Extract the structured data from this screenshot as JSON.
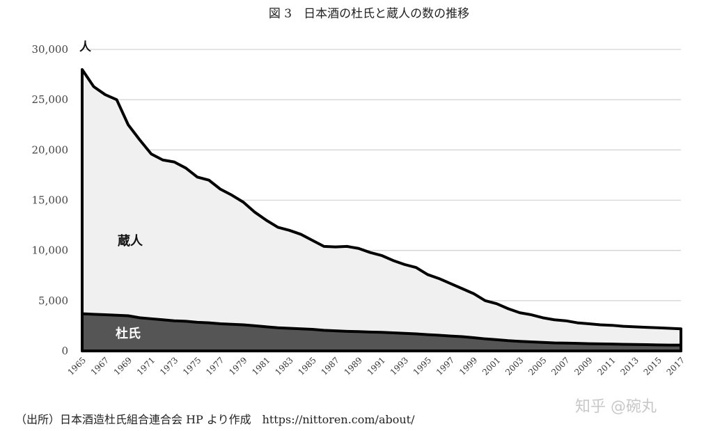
{
  "chart_data": {
    "type": "area",
    "title": "図 3　日本酒の杜氏と蔵人の数の推移",
    "y_unit": "人",
    "ylim": [
      0,
      30000
    ],
    "y_ticks": [
      0,
      5000,
      10000,
      15000,
      20000,
      25000,
      30000
    ],
    "y_tick_labels": [
      "0",
      "5,000",
      "10,000",
      "15,000",
      "20,000",
      "25,000",
      "30,000"
    ],
    "grid": true,
    "stacked": false,
    "x": [
      1965,
      1966,
      1967,
      1968,
      1969,
      1970,
      1971,
      1972,
      1973,
      1974,
      1975,
      1976,
      1977,
      1978,
      1979,
      1980,
      1981,
      1982,
      1983,
      1984,
      1985,
      1986,
      1987,
      1988,
      1989,
      1990,
      1991,
      1992,
      1993,
      1994,
      1995,
      1996,
      1997,
      1998,
      1999,
      2000,
      2001,
      2002,
      2003,
      2004,
      2005,
      2006,
      2007,
      2008,
      2009,
      2010,
      2011,
      2012,
      2013,
      2014,
      2015,
      2016,
      2017
    ],
    "x_tick_labels": [
      "1965",
      "1967",
      "1969",
      "1971",
      "1973",
      "1975",
      "1977",
      "1979",
      "1981",
      "1983",
      "1985",
      "1987",
      "1989",
      "1991",
      "1993",
      "1995",
      "1997",
      "1999",
      "2001",
      "2003",
      "2005",
      "2007",
      "2009",
      "2011",
      "2013",
      "2015",
      "2017"
    ],
    "series": [
      {
        "name": "蔵人",
        "color": "#f0f0f0",
        "stroke": "#000000",
        "values": [
          28000,
          26300,
          25500,
          25000,
          22500,
          21000,
          19600,
          19000,
          18800,
          18200,
          17300,
          17000,
          16100,
          15500,
          14800,
          13800,
          13000,
          12300,
          12000,
          11600,
          11000,
          10400,
          10350,
          10400,
          10200,
          9800,
          9500,
          9000,
          8600,
          8300,
          7600,
          7200,
          6700,
          6200,
          5700,
          5000,
          4700,
          4200,
          3800,
          3600,
          3300,
          3100,
          3000,
          2800,
          2700,
          2600,
          2550,
          2450,
          2400,
          2350,
          2300,
          2250,
          2200
        ]
      },
      {
        "name": "杜氏",
        "color": "#555555",
        "stroke": "#000000",
        "values": [
          3700,
          3650,
          3600,
          3550,
          3500,
          3300,
          3200,
          3100,
          3000,
          2950,
          2850,
          2800,
          2700,
          2650,
          2600,
          2500,
          2400,
          2300,
          2250,
          2200,
          2150,
          2050,
          2000,
          1950,
          1920,
          1880,
          1850,
          1800,
          1750,
          1700,
          1620,
          1560,
          1480,
          1420,
          1320,
          1200,
          1120,
          1020,
          950,
          900,
          850,
          800,
          780,
          750,
          720,
          700,
          680,
          660,
          640,
          620,
          600,
          580,
          580
        ]
      }
    ],
    "source": "（出所）日本酒造杜氏組合連合会 HP より作成　https://nittoren.com/about/"
  },
  "watermark": "知乎 @碗丸"
}
